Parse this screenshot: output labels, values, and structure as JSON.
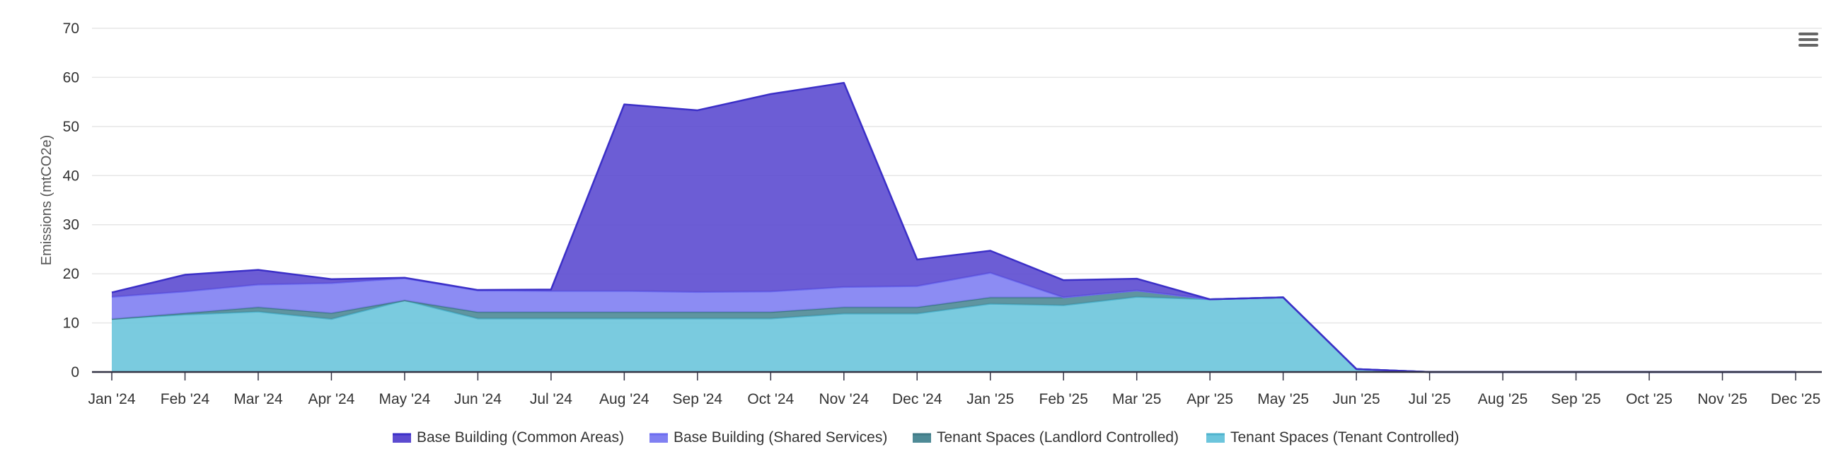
{
  "chart_data": {
    "type": "area",
    "stacked": true,
    "title": "",
    "xlabel": "",
    "ylabel": "Emissions (mtCO2e)",
    "ylim": [
      0,
      70
    ],
    "yticks": [
      0,
      10,
      20,
      30,
      40,
      50,
      60,
      70
    ],
    "grid": true,
    "legend_position": "bottom-center",
    "categories": [
      "Jan '24",
      "Feb '24",
      "Mar '24",
      "Apr '24",
      "May '24",
      "Jun '24",
      "Jul '24",
      "Aug '24",
      "Sep '24",
      "Oct '24",
      "Nov '24",
      "Dec '24",
      "Jan '25",
      "Feb '25",
      "Mar '25",
      "Apr '25",
      "May '25",
      "Jun '25",
      "Jul '25",
      "Aug '25",
      "Sep '25",
      "Oct '25",
      "Nov '25",
      "Dec '25"
    ],
    "series": [
      {
        "name": "Tenant Spaces (Tenant Controlled)",
        "color": "#6cc5dc",
        "stroke": "#4fb3cd",
        "values": [
          10.8,
          11.7,
          12.3,
          10.8,
          14.6,
          10.9,
          10.9,
          10.9,
          10.9,
          10.9,
          11.9,
          11.9,
          13.9,
          13.6,
          15.3,
          14.8,
          15.2,
          0.6,
          0,
          0,
          0,
          0,
          0,
          0
        ]
      },
      {
        "name": "Tenant Spaces (Landlord Controlled)",
        "color": "#4e8a96",
        "stroke": "#3f7a86",
        "values": [
          0,
          0.3,
          0.9,
          1.2,
          0,
          1.3,
          1.3,
          1.3,
          1.3,
          1.3,
          1.3,
          1.3,
          1.3,
          1.6,
          1.3,
          0,
          0,
          0,
          0,
          0,
          0,
          0,
          0,
          0
        ]
      },
      {
        "name": "Base Building (Shared Services)",
        "color": "#8080f2",
        "stroke": "#6c6cf0",
        "values": [
          4.5,
          4.4,
          4.6,
          6.1,
          4.5,
          4.4,
          4.3,
          4.3,
          4.1,
          4.2,
          4.1,
          4.3,
          5.0,
          0,
          0,
          0,
          0,
          0,
          0,
          0,
          0,
          0,
          0,
          0
        ]
      },
      {
        "name": "Base Building (Common Areas)",
        "color": "#5c4bd0",
        "stroke": "#3b2fc7",
        "values": [
          0.9,
          3.4,
          3.0,
          0.8,
          0.1,
          0.1,
          0.3,
          38.0,
          37.0,
          40.2,
          41.6,
          5.4,
          4.5,
          3.5,
          2.4,
          0,
          0,
          0,
          0,
          0,
          0,
          0,
          0,
          0
        ]
      }
    ],
    "legend": [
      "Base Building (Common Areas)",
      "Base Building (Shared Services)",
      "Tenant Spaces (Landlord Controlled)",
      "Tenant Spaces (Tenant Controlled)"
    ]
  },
  "menu": {
    "icon": "hamburger-menu-icon"
  }
}
